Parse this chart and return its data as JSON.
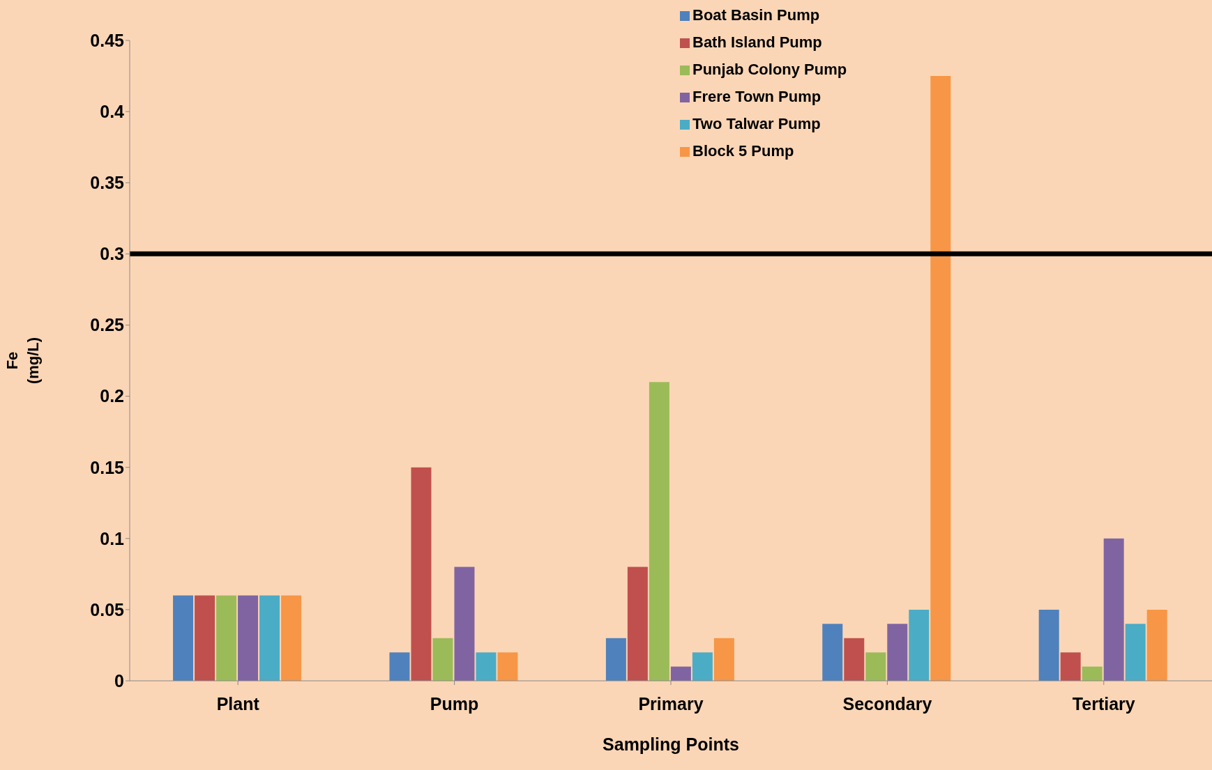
{
  "chart_data": {
    "type": "bar",
    "xlabel": "Sampling Points",
    "ylabel": "Fe (mg/L)",
    "categories": [
      "Plant",
      "Pump",
      "Primary",
      "Secondary",
      "Tertiary"
    ],
    "series": [
      {
        "name": "Boat Basin Pump",
        "color": "#4f81bd",
        "values": [
          0.06,
          0.02,
          0.03,
          0.04,
          0.05
        ]
      },
      {
        "name": "Bath Island Pump",
        "color": "#c0504d",
        "values": [
          0.06,
          0.15,
          0.08,
          0.03,
          0.02
        ]
      },
      {
        "name": "Punjab Colony Pump",
        "color": "#9bbb59",
        "values": [
          0.06,
          0.03,
          0.21,
          0.02,
          0.01
        ]
      },
      {
        "name": "Frere Town Pump",
        "color": "#8064a2",
        "values": [
          0.06,
          0.08,
          0.01,
          0.04,
          0.1
        ]
      },
      {
        "name": "Two Talwar Pump",
        "color": "#4bacc6",
        "values": [
          0.06,
          0.02,
          0.02,
          0.05,
          0.04
        ]
      },
      {
        "name": "Block 5 Pump",
        "color": "#f79646",
        "values": [
          0.06,
          0.02,
          0.03,
          0.425,
          0.05
        ]
      }
    ],
    "ylim": [
      0,
      0.45
    ],
    "yticks": [
      0,
      0.05,
      0.1,
      0.15,
      0.2,
      0.25,
      0.3,
      0.35,
      0.4,
      0.45
    ],
    "ref_lines": [
      {
        "axis": "y",
        "value": 0.3,
        "color": "#000000"
      }
    ],
    "grid": false,
    "legend": "top"
  }
}
